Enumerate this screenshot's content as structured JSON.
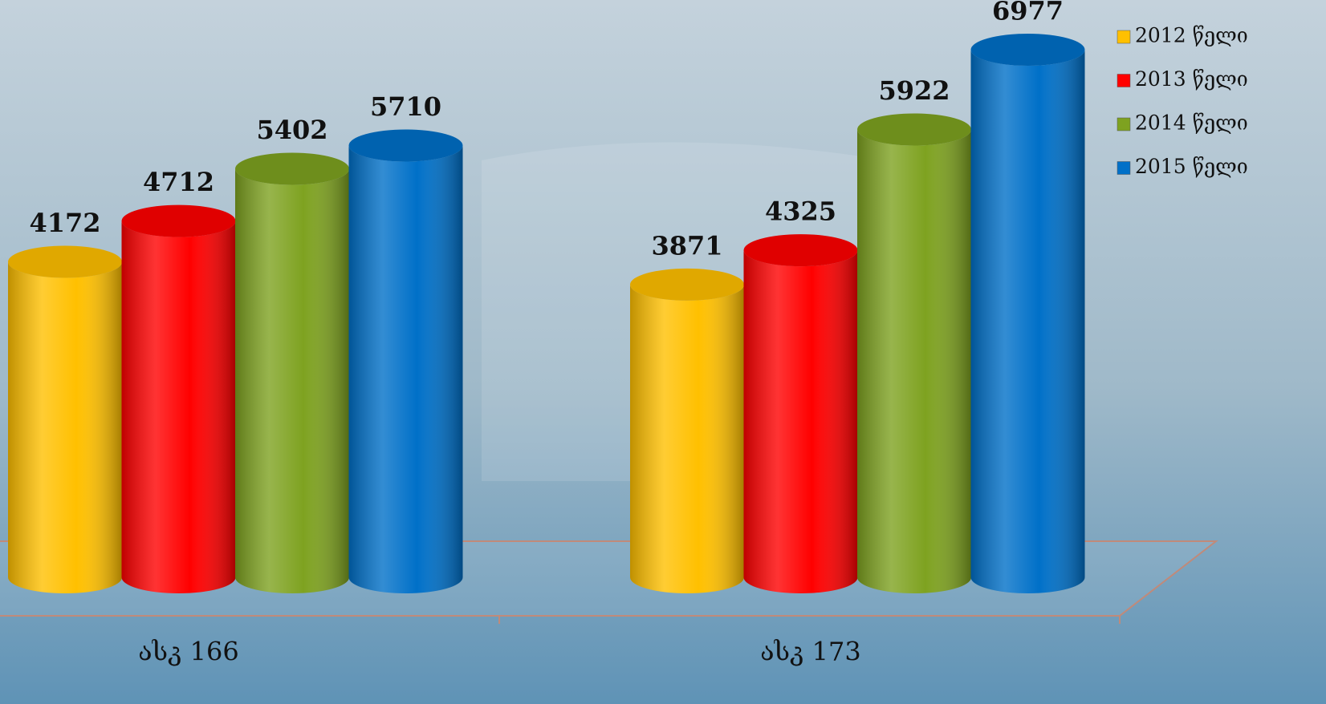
{
  "chart_data": {
    "type": "bar3d-cylinder",
    "categories": [
      "ასკ 166",
      "ასკ 173"
    ],
    "series": [
      {
        "name": "2012 წელი",
        "color": "#ffc000",
        "values": [
          4172,
          3871
        ]
      },
      {
        "name": "2013 წელი",
        "color": "#ff0000",
        "values": [
          4712,
          4325
        ]
      },
      {
        "name": "2014 წელი",
        "color": "#7ea220",
        "values": [
          5402,
          5922
        ]
      },
      {
        "name": "2015 წელი",
        "color": "#0070c8",
        "values": [
          5710,
          6977
        ]
      }
    ],
    "legend": "top-right"
  }
}
